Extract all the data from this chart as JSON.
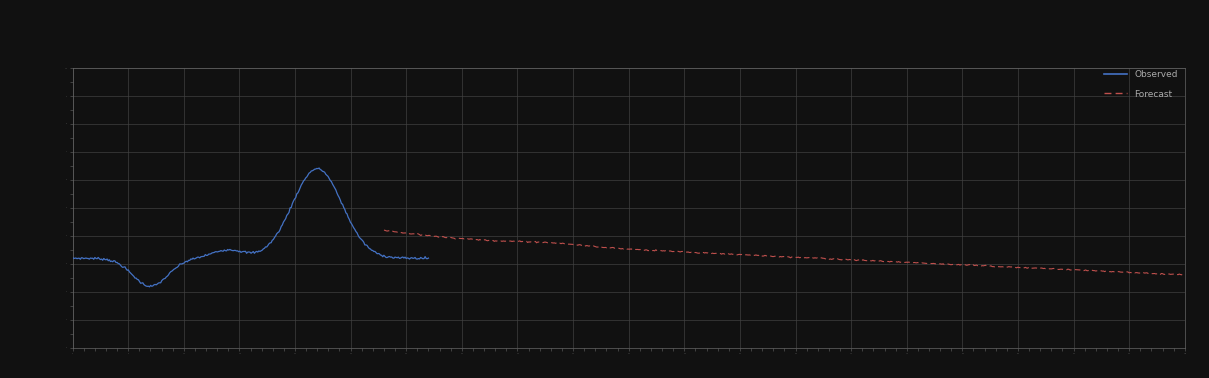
{
  "background_color": "#111111",
  "plot_bg_color": "#111111",
  "grid_color": "#444444",
  "line1_color": "#4472c4",
  "line2_color": "#c0504d",
  "line1_label": "Observed",
  "line2_label": "Forecast",
  "xlim": [
    0,
    100
  ],
  "ylim": [
    0,
    10
  ],
  "legend_text_color": "#aaaaaa",
  "tick_color": "#666666",
  "spine_color": "#666666",
  "figsize": [
    12.09,
    3.78
  ],
  "dpi": 100
}
